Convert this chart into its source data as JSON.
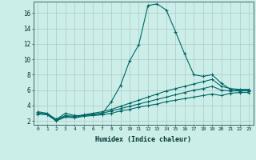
{
  "xlabel": "Humidex (Indice chaleur)",
  "ylabel": "",
  "bg_color": "#cceee8",
  "grid_color": "#b0c8c8",
  "line_color": "#006666",
  "xlim": [
    -0.5,
    23.5
  ],
  "ylim": [
    1.5,
    17.5
  ],
  "yticks": [
    2,
    4,
    6,
    8,
    10,
    12,
    14,
    16
  ],
  "xticks": [
    0,
    1,
    2,
    3,
    4,
    5,
    6,
    7,
    8,
    9,
    10,
    11,
    12,
    13,
    14,
    15,
    16,
    17,
    18,
    19,
    20,
    21,
    22,
    23
  ],
  "series": [
    {
      "x": [
        0,
        1,
        2,
        3,
        4,
        5,
        6,
        7,
        8,
        9,
        10,
        11,
        12,
        13,
        14,
        15,
        16,
        17,
        18,
        19,
        20,
        21,
        22,
        23
      ],
      "y": [
        3.2,
        3.0,
        2.2,
        3.0,
        2.7,
        2.7,
        2.8,
        2.9,
        4.5,
        6.6,
        9.8,
        11.9,
        17.0,
        17.2,
        16.4,
        13.6,
        10.7,
        8.0,
        7.8,
        8.0,
        6.9,
        6.1,
        6.0,
        6.0
      ]
    },
    {
      "x": [
        0,
        1,
        2,
        3,
        4,
        5,
        6,
        7,
        8,
        9,
        10,
        11,
        12,
        13,
        14,
        15,
        16,
        17,
        18,
        19,
        20,
        21,
        22,
        23
      ],
      "y": [
        3.0,
        2.9,
        2.2,
        2.7,
        2.6,
        2.8,
        3.0,
        3.2,
        3.5,
        3.9,
        4.3,
        4.7,
        5.1,
        5.5,
        5.9,
        6.2,
        6.5,
        6.8,
        7.1,
        7.4,
        6.5,
        6.2,
        6.1,
        6.1
      ]
    },
    {
      "x": [
        0,
        1,
        2,
        3,
        4,
        5,
        6,
        7,
        8,
        9,
        10,
        11,
        12,
        13,
        14,
        15,
        16,
        17,
        18,
        19,
        20,
        21,
        22,
        23
      ],
      "y": [
        3.0,
        2.9,
        2.1,
        2.6,
        2.5,
        2.7,
        2.9,
        3.0,
        3.3,
        3.6,
        3.9,
        4.2,
        4.5,
        4.8,
        5.1,
        5.4,
        5.7,
        6.0,
        6.2,
        6.5,
        6.0,
        5.9,
        5.9,
        5.9
      ]
    },
    {
      "x": [
        0,
        1,
        2,
        3,
        4,
        5,
        6,
        7,
        8,
        9,
        10,
        11,
        12,
        13,
        14,
        15,
        16,
        17,
        18,
        19,
        20,
        21,
        22,
        23
      ],
      "y": [
        2.9,
        2.8,
        2.0,
        2.5,
        2.4,
        2.6,
        2.7,
        2.8,
        3.0,
        3.3,
        3.5,
        3.8,
        4.0,
        4.2,
        4.5,
        4.7,
        4.9,
        5.1,
        5.3,
        5.5,
        5.3,
        5.6,
        5.7,
        5.7
      ]
    }
  ]
}
